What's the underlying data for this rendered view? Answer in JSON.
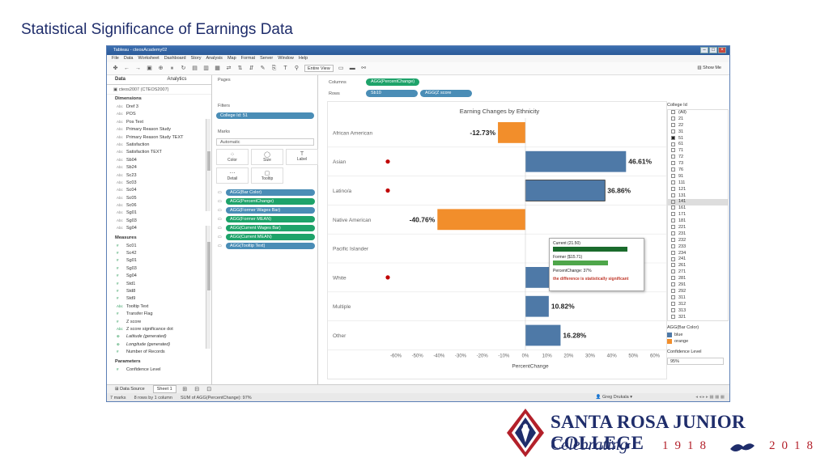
{
  "slide": {
    "title": "Statistical Significance of Earnings Data"
  },
  "window": {
    "title": "Tableau - cteosAcademy02"
  },
  "menu": [
    "File",
    "Data",
    "Worksheet",
    "Dashboard",
    "Story",
    "Analysis",
    "Map",
    "Format",
    "Server",
    "Window",
    "Help"
  ],
  "toolbar": {
    "fit_select": "Entire View",
    "show_me": "Show Me"
  },
  "left": {
    "tab_data": "Data",
    "tab_analytics": "Analytics",
    "datasource": "cteos2007 (CTEOS2007)",
    "dimensions_header": "Dimensions",
    "dimensions": [
      {
        "type": "Abc",
        "name": "Dref 3"
      },
      {
        "type": "Abc",
        "name": "POS"
      },
      {
        "type": "Abc",
        "name": "Pos Text"
      },
      {
        "type": "Abc",
        "name": "Primary Reason Study"
      },
      {
        "type": "Abc",
        "name": "Primary Reason Study TEXT"
      },
      {
        "type": "Abc",
        "name": "Satisfaction"
      },
      {
        "type": "Abc",
        "name": "Satisfaction TEXT"
      },
      {
        "type": "Abc",
        "name": "Sb04"
      },
      {
        "type": "Abc",
        "name": "Sb24"
      },
      {
        "type": "Abc",
        "name": "Sc23"
      },
      {
        "type": "Abc",
        "name": "Sc03"
      },
      {
        "type": "Abc",
        "name": "Sc04"
      },
      {
        "type": "Abc",
        "name": "Sc05"
      },
      {
        "type": "Abc",
        "name": "Sc06"
      },
      {
        "type": "Abc",
        "name": "Sg01"
      },
      {
        "type": "Abc",
        "name": "Sg03"
      },
      {
        "type": "Abc",
        "name": "Sg04"
      }
    ],
    "measures_header": "Measures",
    "measures": [
      {
        "type": "#",
        "name": "Sc01"
      },
      {
        "type": "#",
        "name": "Sc42"
      },
      {
        "type": "#",
        "name": "Sg01"
      },
      {
        "type": "#",
        "name": "Sg03"
      },
      {
        "type": "#",
        "name": "Sg04"
      },
      {
        "type": "#",
        "name": "Std1"
      },
      {
        "type": "#",
        "name": "Std8"
      },
      {
        "type": "#",
        "name": "Std9"
      },
      {
        "type": "Abc",
        "name": "Tooltip Text"
      },
      {
        "type": "#",
        "name": "Transfer Flag"
      },
      {
        "type": "#",
        "name": "Z score"
      },
      {
        "type": "Abc",
        "name": "Z score significance dot"
      },
      {
        "type": "⊕",
        "name": "Latitude (generated)"
      },
      {
        "type": "⊕",
        "name": "Longitude (generated)"
      },
      {
        "type": "#",
        "name": "Number of Records"
      }
    ],
    "parameters_header": "Parameters",
    "parameters": [
      {
        "type": "#",
        "name": "Confidence Level"
      }
    ]
  },
  "shelves": {
    "pages": "Pages",
    "filters": "Filters",
    "filter_pill": "College Id: 51",
    "marks": "Marks",
    "marks_type": "Automatic",
    "marks_buttons": [
      {
        "icon": "⁘",
        "label": "Color"
      },
      {
        "icon": "◯",
        "label": "Size"
      },
      {
        "icon": "T",
        "label": "Label"
      },
      {
        "icon": "⋯",
        "label": "Detail"
      },
      {
        "icon": "▢",
        "label": "Tooltip"
      }
    ],
    "marks_pills": [
      {
        "color": "blue",
        "label": "AGG(Bar Color)"
      },
      {
        "color": "green",
        "label": "AGG(PercentChange)"
      },
      {
        "color": "blue",
        "label": "AGG(Former Wages Bar)"
      },
      {
        "color": "green",
        "label": "AGG(Former MEAN)"
      },
      {
        "color": "green",
        "label": "AGG(Current Wages Bar)"
      },
      {
        "color": "green",
        "label": "AGG(Current MEAN)"
      },
      {
        "color": "blue",
        "label": "AGG(Tooltip Text)"
      }
    ],
    "columns_label": "Columns",
    "columns_pill": "AGG(PercentChange)",
    "rows_label": "Rows",
    "rows_pills": [
      "Sb10",
      "AGG(Z score significa..."
    ]
  },
  "chart_data": {
    "type": "bar",
    "title": "Earning Changes by Ethnicity",
    "xlabel": "PercentChange",
    "xlim": [
      -60,
      60
    ],
    "ticks": [
      "-60%",
      "-50%",
      "-40%",
      "-30%",
      "-20%",
      "-10%",
      "0%",
      "10%",
      "20%",
      "30%",
      "40%",
      "50%",
      "60%"
    ],
    "tick_values": [
      -60,
      -50,
      -40,
      -30,
      -20,
      -10,
      0,
      10,
      20,
      30,
      40,
      50,
      60
    ],
    "categories": [
      "African American",
      "Asian",
      "Latino/a",
      "Native American",
      "Pacific Islander",
      "White",
      "Multiple",
      "Other"
    ],
    "values": [
      -12.73,
      46.61,
      36.86,
      -40.76,
      null,
      39.46,
      10.82,
      16.28
    ],
    "labels": [
      "-12.73%",
      "46.61%",
      "36.86%",
      "-40.76%",
      "",
      "39.46%",
      "10.82%",
      "16.28%"
    ],
    "colors": [
      "orange",
      "blue",
      "blue",
      "orange",
      null,
      "blue",
      "blue",
      "blue"
    ],
    "significant": [
      false,
      true,
      true,
      false,
      false,
      true,
      false,
      false
    ],
    "palette": {
      "blue": "#4e79a7",
      "orange": "#f28e2b",
      "dot": "#c00000"
    }
  },
  "tooltip": {
    "current": "Current (21.50)",
    "former": "Former ($15.71)",
    "percent": "PercentChange: 37%",
    "significance": "the difference is statistically significant"
  },
  "right": {
    "college_header": "College Id",
    "college_items": [
      "(All)",
      "21",
      "22",
      "31",
      "51",
      "61",
      "71",
      "72",
      "73",
      "76",
      "91",
      "111",
      "121",
      "131",
      "141",
      "161",
      "171",
      "181",
      "221",
      "231",
      "232",
      "233",
      "234",
      "241",
      "261",
      "271",
      "281",
      "291",
      "292",
      "311",
      "312",
      "313",
      "321"
    ],
    "college_selected": "51",
    "college_highlight": "141",
    "legend_header": "AGG(Bar Color)",
    "legend": [
      {
        "label": "blue",
        "color": "#4e79a7"
      },
      {
        "label": "orange",
        "color": "#f28e2b"
      }
    ],
    "confidence_header": "Confidence Level",
    "confidence_value": "95%"
  },
  "bottom": {
    "data_source_tab": "Data Source",
    "sheet_tab": "Sheet 1",
    "status_marks": "7 marks",
    "status_rows": "8 rows by 1 column",
    "status_sum": "SUM of AGG(PercentChange): 97%",
    "user": "Greg Drukala"
  },
  "logo": {
    "name": "SANTA ROSA JUNIOR COLLEGE",
    "tagline": "Celebrating",
    "years": "1918",
    "years2": "2018"
  }
}
